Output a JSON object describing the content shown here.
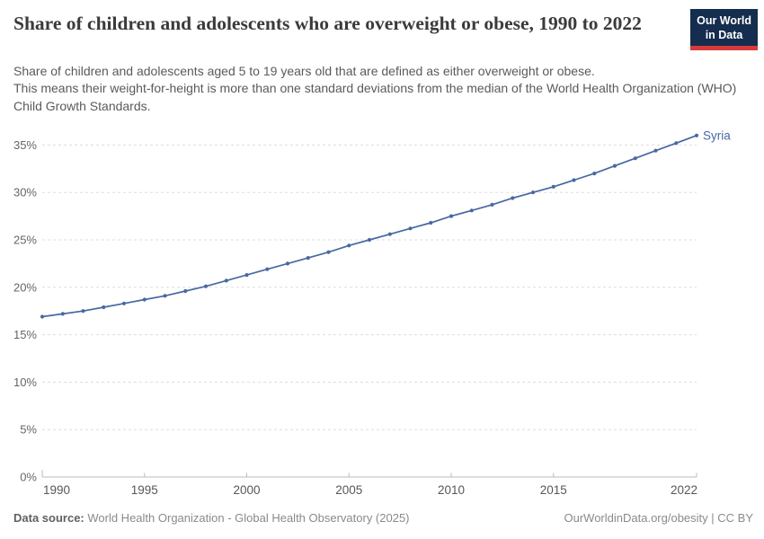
{
  "header": {
    "title": "Share of children and adolescents who are overweight or obese, 1990 to 2022",
    "subtitle_lines": [
      "Share of children and adolescents aged 5 to 19 years old that are defined as either overweight or obese.",
      "This means their weight-for-height is more than one standard deviations from the median of the World Health Organization (WHO) Child Growth Standards."
    ],
    "logo": {
      "line1": "Our World",
      "line2": "in Data"
    }
  },
  "chart_data": {
    "type": "line",
    "title": "Share of children and adolescents who are overweight or obese, 1990 to 2022",
    "entity": "Syria",
    "unit": "%",
    "x": [
      1990,
      1991,
      1992,
      1993,
      1994,
      1995,
      1996,
      1997,
      1998,
      1999,
      2000,
      2001,
      2002,
      2003,
      2004,
      2005,
      2006,
      2007,
      2008,
      2009,
      2010,
      2011,
      2012,
      2013,
      2014,
      2015,
      2016,
      2017,
      2018,
      2019,
      2020,
      2021,
      2022
    ],
    "series": [
      {
        "name": "Syria",
        "color": "#4868a3",
        "values": [
          16.9,
          17.2,
          17.5,
          17.9,
          18.3,
          18.7,
          19.1,
          19.6,
          20.1,
          20.7,
          21.3,
          21.9,
          22.5,
          23.1,
          23.7,
          24.4,
          25.0,
          25.6,
          26.2,
          26.8,
          27.5,
          28.1,
          28.7,
          29.4,
          30.0,
          30.6,
          31.3,
          32.0,
          32.8,
          33.6,
          34.4,
          35.2,
          36.0
        ]
      }
    ],
    "xlim": [
      1990,
      2022
    ],
    "ylim": [
      0,
      35
    ],
    "yticks": [
      0,
      5,
      10,
      15,
      20,
      25,
      30,
      35
    ],
    "ytick_suffix": "%",
    "xticks": [
      1990,
      1995,
      2000,
      2005,
      2010,
      2015,
      2022
    ],
    "grid": "horizontal-dashed",
    "legend_position": "end-of-line-label",
    "colors": {
      "line": "#4868a3",
      "grid": "#dddddd",
      "axis": "#bbbbbb",
      "tick_text": "#666666"
    }
  },
  "footer": {
    "source_label": "Data source:",
    "source_text": " World Health Organization - Global Health Observatory (2025)",
    "link_text": "OurWorldinData.org/obesity | CC BY"
  }
}
